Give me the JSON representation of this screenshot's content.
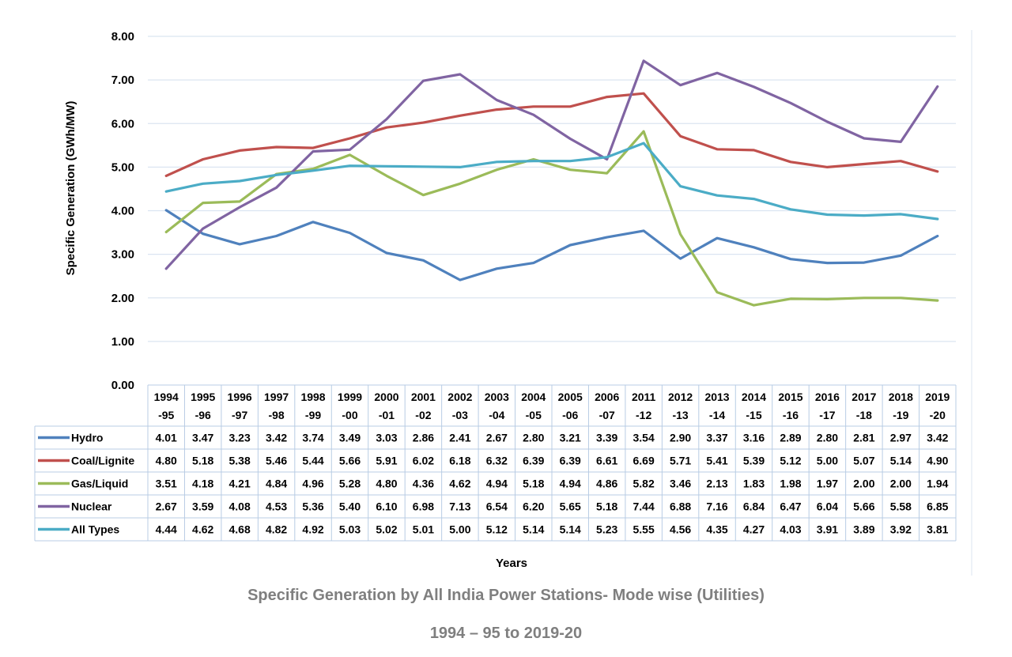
{
  "chart_data": {
    "type": "line",
    "title": "",
    "ylabel": "Specific Generation (GWh/MW)",
    "xlabel": "Years",
    "ylim": [
      0,
      8
    ],
    "yticks": [
      "0.00",
      "1.00",
      "2.00",
      "3.00",
      "4.00",
      "5.00",
      "6.00",
      "7.00",
      "8.00"
    ],
    "grid": true,
    "legend": "data table below plot",
    "categories": [
      [
        "1994",
        "-95"
      ],
      [
        "1995",
        "-96"
      ],
      [
        "1996",
        "-97"
      ],
      [
        "1997",
        "-98"
      ],
      [
        "1998",
        "-99"
      ],
      [
        "1999",
        "-00"
      ],
      [
        "2000",
        "-01"
      ],
      [
        "2001",
        "-02"
      ],
      [
        "2002",
        "-03"
      ],
      [
        "2003",
        "-04"
      ],
      [
        "2004",
        "-05"
      ],
      [
        "2005",
        "-06"
      ],
      [
        "2006",
        "-07"
      ],
      [
        "2011",
        "-12"
      ],
      [
        "2012",
        "-13"
      ],
      [
        "2013",
        "-14"
      ],
      [
        "2014",
        "-15"
      ],
      [
        "2015",
        "-16"
      ],
      [
        "2016",
        "-17"
      ],
      [
        "2017",
        "-18"
      ],
      [
        "2018",
        "-19"
      ],
      [
        "2019",
        "-20"
      ]
    ],
    "series": [
      {
        "name": "Hydro",
        "color": "#4f81bd",
        "values": [
          "4.01",
          "3.47",
          "3.23",
          "3.42",
          "3.74",
          "3.49",
          "3.03",
          "2.86",
          "2.41",
          "2.67",
          "2.80",
          "3.21",
          "3.39",
          "3.54",
          "2.90",
          "3.37",
          "3.16",
          "2.89",
          "2.80",
          "2.81",
          "2.97",
          "3.42"
        ]
      },
      {
        "name": "Coal/Lignite",
        "color": "#c0504d",
        "values": [
          "4.80",
          "5.18",
          "5.38",
          "5.46",
          "5.44",
          "5.66",
          "5.91",
          "6.02",
          "6.18",
          "6.32",
          "6.39",
          "6.39",
          "6.61",
          "6.69",
          "5.71",
          "5.41",
          "5.39",
          "5.12",
          "5.00",
          "5.07",
          "5.14",
          "4.90"
        ]
      },
      {
        "name": "Gas/Liquid",
        "color": "#9bbb59",
        "values": [
          "3.51",
          "4.18",
          "4.21",
          "4.84",
          "4.96",
          "5.28",
          "4.80",
          "4.36",
          "4.62",
          "4.94",
          "5.18",
          "4.94",
          "4.86",
          "5.82",
          "3.46",
          "2.13",
          "1.83",
          "1.98",
          "1.97",
          "2.00",
          "2.00",
          "1.94"
        ]
      },
      {
        "name": "Nuclear",
        "color": "#8064a2",
        "values": [
          "2.67",
          "3.59",
          "4.08",
          "4.53",
          "5.36",
          "5.40",
          "6.10",
          "6.98",
          "7.13",
          "6.54",
          "6.20",
          "5.65",
          "5.18",
          "7.44",
          "6.88",
          "7.16",
          "6.84",
          "6.47",
          "6.04",
          "5.66",
          "5.58",
          "6.85"
        ]
      },
      {
        "name": "All Types",
        "color": "#4bacc6",
        "values": [
          "4.44",
          "4.62",
          "4.68",
          "4.82",
          "4.92",
          "5.03",
          "5.02",
          "5.01",
          "5.00",
          "5.12",
          "5.14",
          "5.14",
          "5.23",
          "5.55",
          "4.56",
          "4.35",
          "4.27",
          "4.03",
          "3.91",
          "3.89",
          "3.92",
          "3.81"
        ]
      }
    ]
  },
  "caption": {
    "line1": "Specific Generation by All India Power Stations- Mode wise (Utilities)",
    "line2": "1994 – 95 to 2019-20"
  },
  "colors": {
    "grid": "#dbe5f1",
    "table_border": "#b8cce4",
    "caption": "#7f7f7f"
  }
}
